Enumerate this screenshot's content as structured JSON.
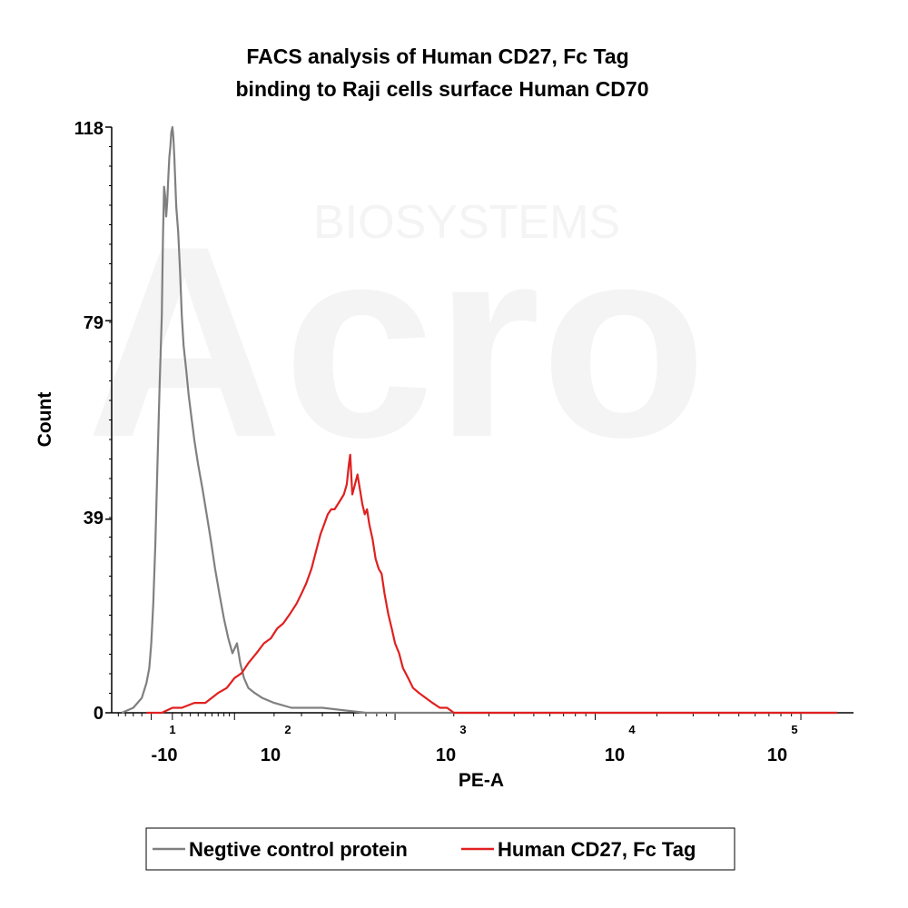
{
  "chart_data": {
    "type": "line",
    "title_lines": [
      "FACS analysis of  Human CD27, Fc Tag",
      "binding to Raji cells surface Human CD70"
    ],
    "xlabel": "PE-A",
    "ylabel": "Count",
    "y_ticks": [
      "0",
      "39",
      "79",
      "118"
    ],
    "ylim": [
      0,
      118
    ],
    "x_scale": "biexponential",
    "x_ticks": [
      {
        "base": "-10",
        "exp": "1"
      },
      {
        "base": "10",
        "exp": "2"
      },
      {
        "base": "10",
        "exp": "3"
      },
      {
        "base": "10",
        "exp": "4"
      },
      {
        "base": "10",
        "exp": "5"
      }
    ],
    "watermark": {
      "brand": "Acro",
      "sub": "BIOSYSTEMS"
    },
    "legend": {
      "placement": "bottom"
    },
    "series": [
      {
        "name": "Negtive control protein",
        "color": "#808080",
        "points": [
          [
            -45,
            0
          ],
          [
            -30,
            1
          ],
          [
            -20,
            3
          ],
          [
            -15,
            6
          ],
          [
            -12,
            9
          ],
          [
            -10,
            14
          ],
          [
            -8,
            22
          ],
          [
            -6,
            34
          ],
          [
            -4,
            50
          ],
          [
            -2,
            66
          ],
          [
            0,
            80
          ],
          [
            1,
            96
          ],
          [
            2,
            106
          ],
          [
            3,
            104
          ],
          [
            4,
            100
          ],
          [
            5,
            103
          ],
          [
            6,
            108
          ],
          [
            7,
            112
          ],
          [
            8,
            114
          ],
          [
            9,
            117
          ],
          [
            10,
            118
          ],
          [
            11,
            116
          ],
          [
            12,
            112
          ],
          [
            14,
            102
          ],
          [
            16,
            97
          ],
          [
            18,
            89
          ],
          [
            20,
            80
          ],
          [
            22,
            74
          ],
          [
            25,
            69
          ],
          [
            28,
            64
          ],
          [
            31,
            60
          ],
          [
            35,
            55
          ],
          [
            40,
            50
          ],
          [
            46,
            45
          ],
          [
            52,
            40
          ],
          [
            58,
            35
          ],
          [
            65,
            29
          ],
          [
            72,
            24
          ],
          [
            80,
            19
          ],
          [
            88,
            15
          ],
          [
            96,
            12
          ],
          [
            105,
            14
          ],
          [
            112,
            10
          ],
          [
            120,
            7
          ],
          [
            130,
            5
          ],
          [
            145,
            4
          ],
          [
            165,
            3
          ],
          [
            200,
            2
          ],
          [
            260,
            1
          ],
          [
            400,
            1
          ],
          [
            700,
            0
          ],
          [
            1500,
            0
          ],
          [
            20000,
            0
          ],
          [
            150000,
            0
          ]
        ]
      },
      {
        "name": "Human CD27, Fc Tag",
        "color": "#e02020",
        "points": [
          [
            -15,
            0
          ],
          [
            0,
            0
          ],
          [
            10,
            1
          ],
          [
            20,
            1
          ],
          [
            35,
            2
          ],
          [
            50,
            2
          ],
          [
            70,
            4
          ],
          [
            85,
            5
          ],
          [
            100,
            7
          ],
          [
            115,
            8
          ],
          [
            130,
            10
          ],
          [
            150,
            12
          ],
          [
            170,
            14
          ],
          [
            190,
            15
          ],
          [
            210,
            17
          ],
          [
            230,
            18
          ],
          [
            255,
            20
          ],
          [
            280,
            22
          ],
          [
            300,
            24
          ],
          [
            320,
            26
          ],
          [
            345,
            29
          ],
          [
            370,
            33
          ],
          [
            390,
            36
          ],
          [
            410,
            38
          ],
          [
            430,
            40
          ],
          [
            450,
            41
          ],
          [
            470,
            41
          ],
          [
            490,
            42
          ],
          [
            510,
            43
          ],
          [
            530,
            44
          ],
          [
            550,
            46
          ],
          [
            565,
            50
          ],
          [
            575,
            52
          ],
          [
            590,
            44
          ],
          [
            610,
            46
          ],
          [
            630,
            48
          ],
          [
            650,
            45
          ],
          [
            670,
            42
          ],
          [
            690,
            40
          ],
          [
            710,
            41
          ],
          [
            730,
            38
          ],
          [
            760,
            35
          ],
          [
            790,
            31
          ],
          [
            820,
            29
          ],
          [
            850,
            28
          ],
          [
            880,
            24
          ],
          [
            920,
            20
          ],
          [
            960,
            17
          ],
          [
            1000,
            14
          ],
          [
            1050,
            12
          ],
          [
            1100,
            9
          ],
          [
            1170,
            7
          ],
          [
            1240,
            5
          ],
          [
            1330,
            4
          ],
          [
            1440,
            3
          ],
          [
            1560,
            2
          ],
          [
            1700,
            1
          ],
          [
            1850,
            1
          ],
          [
            2000,
            0
          ],
          [
            3000,
            0
          ],
          [
            10000,
            0
          ],
          [
            150000,
            0
          ]
        ]
      }
    ]
  }
}
